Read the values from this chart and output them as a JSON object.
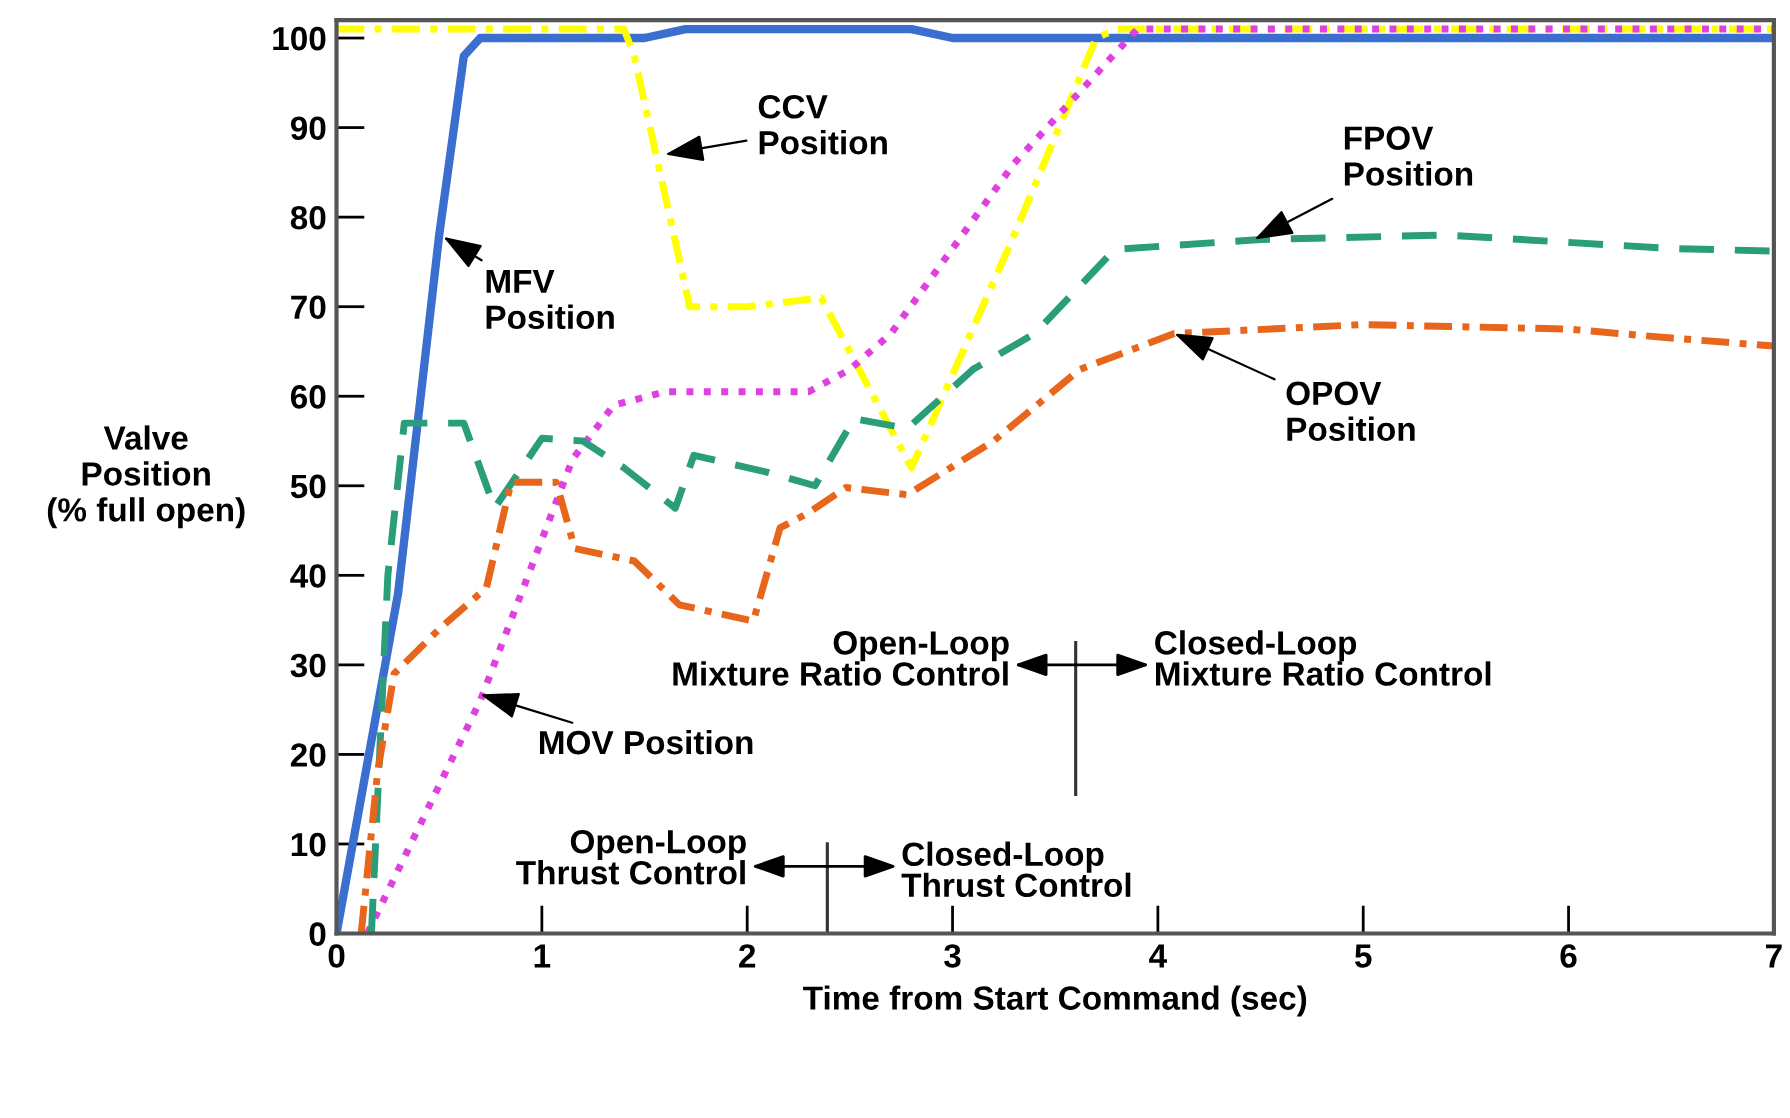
{
  "chart_data": {
    "type": "line",
    "xlabel": "Time from Start Command (sec)",
    "ylabel": "Valve\nPosition\n(% full open)",
    "xlim": [
      0,
      7
    ],
    "ylim": [
      0,
      102
    ],
    "xticks": [
      0,
      1,
      2,
      3,
      4,
      5,
      6,
      7
    ],
    "yticks": [
      0,
      10,
      20,
      30,
      40,
      50,
      60,
      70,
      80,
      90,
      100
    ],
    "grid": false,
    "legend": false,
    "series": [
      {
        "color": "#3a6fd0",
        "line_style": "solid",
        "x": [
          0,
          0.3,
          0.5,
          0.62,
          0.7,
          1.5,
          1.7,
          2.3,
          2.8,
          3.0,
          4.0,
          7
        ],
        "values": [
          0,
          38,
          78,
          98,
          100,
          100,
          101,
          101,
          101,
          100,
          100,
          100
        ]
      },
      {
        "color": "#ffff00",
        "line_style": "dashdot",
        "x": [
          0,
          1.4,
          1.45,
          1.72,
          2.0,
          2.36,
          2.8,
          3.3,
          3.7,
          3.8,
          7
        ],
        "values": [
          101,
          101,
          98,
          70,
          70,
          71,
          52,
          78,
          100,
          101,
          101
        ]
      },
      {
        "color": "#e040e0",
        "line_style": "dotted",
        "x": [
          0.15,
          0.7,
          1.15,
          1.35,
          1.6,
          2.3,
          2.5,
          2.7,
          3.3,
          3.9,
          7
        ],
        "values": [
          0,
          26,
          53,
          59,
          60.5,
          60.5,
          63,
          67,
          86,
          101,
          101
        ]
      },
      {
        "color": "#2a9d7a",
        "line_style": "dashed",
        "x": [
          0.17,
          0.25,
          0.33,
          0.62,
          0.77,
          1.0,
          1.2,
          1.4,
          1.65,
          1.74,
          2.1,
          2.33,
          2.52,
          2.78,
          3.1,
          3.4,
          3.79,
          4.5,
          5.4,
          6.5,
          7
        ],
        "values": [
          0,
          40,
          57,
          57,
          47.5,
          55.3,
          55,
          52,
          47.5,
          53.4,
          51.5,
          50,
          57.5,
          56.4,
          63,
          67,
          76.4,
          77.5,
          78,
          76.5,
          76.2
        ]
      },
      {
        "color": "#e8651c",
        "line_style": "dashdot",
        "x": [
          0.12,
          0.2,
          0.28,
          0.5,
          0.73,
          0.85,
          1.07,
          1.16,
          1.45,
          1.67,
          2.03,
          2.16,
          2.3,
          2.48,
          2.78,
          3.2,
          3.62,
          4.08,
          5.0,
          6.0,
          6.5,
          7
        ],
        "values": [
          0,
          18,
          29,
          34,
          38.6,
          50.4,
          50.4,
          43,
          41.6,
          36.7,
          34.9,
          45.3,
          47,
          49.8,
          49,
          55,
          63,
          67,
          68,
          67.5,
          66.5,
          65.6
        ]
      }
    ],
    "annotations": [
      {
        "text": "MFV\nPosition",
        "x": 0.52,
        "y": 77.8
      },
      {
        "text": "CCV\nPosition",
        "x": 1.6,
        "y": 87
      },
      {
        "text": "MOV Position",
        "x": 0.7,
        "y": 26.7
      },
      {
        "text": "FPOV\nPosition",
        "x": 4.47,
        "y": 77.5
      },
      {
        "text": "OPOV\nPosition",
        "x": 4.08,
        "y": 67
      },
      "Open-Loop\nMixture Ratio Control",
      "Closed-Loop\nMixture Ratio Control",
      "Open-Loop\nThrust Control",
      "Closed-Loop\nThrust Control"
    ]
  }
}
